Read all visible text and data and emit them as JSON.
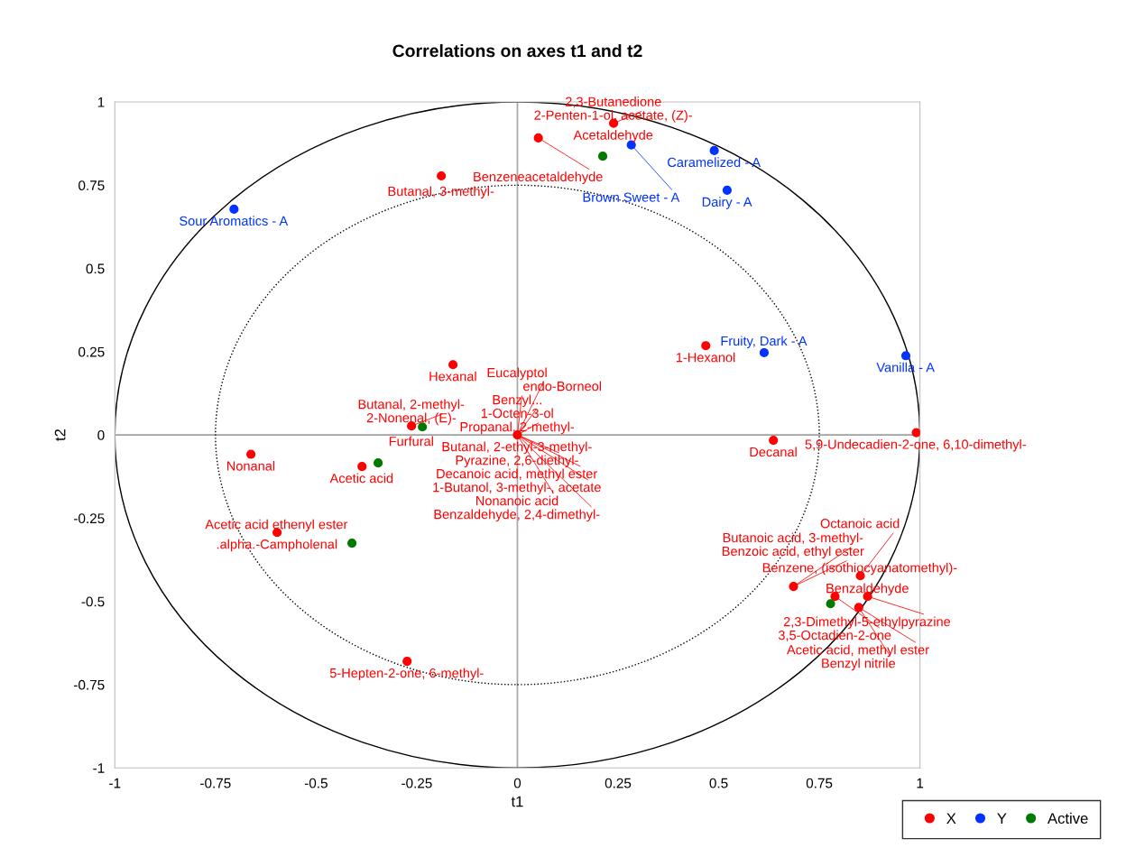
{
  "chart_data": {
    "type": "scatter",
    "title": "Correlations on axes t1 and t2",
    "xlabel": "t1",
    "ylabel": "t2",
    "xlim": [
      -1,
      1
    ],
    "ylim": [
      -1,
      1
    ],
    "xticks": [
      -1,
      -0.75,
      -0.5,
      -0.25,
      0,
      0.25,
      0.5,
      0.75,
      1
    ],
    "yticks": [
      -1,
      -0.75,
      -0.5,
      -0.25,
      0,
      0.25,
      0.5,
      0.75,
      1
    ],
    "grid": false,
    "legend": "bottom right",
    "marker": "circle",
    "ref_lines": [
      {
        "axis": "x",
        "value": 0,
        "color": "#a6a6a6"
      },
      {
        "axis": "y",
        "value": 0,
        "color": "#a0a0a0"
      }
    ],
    "series": [
      {
        "name": "X",
        "color": "#ff0000",
        "x": [
          0.239,
          0.052,
          -0.189,
          -0.16,
          0.468,
          -0.263,
          -0.662,
          -0.386,
          -0.597,
          -0.274,
          0,
          0.636,
          0.991,
          0.852,
          0.87,
          0.789,
          0.848,
          0.686
        ],
        "values": [
          0.936,
          0.892,
          0.778,
          0.211,
          0.268,
          0.027,
          -0.058,
          -0.095,
          -0.293,
          -0.68,
          0,
          -0.016,
          0.007,
          -0.423,
          -0.485,
          -0.485,
          -0.518,
          -0.455
        ]
      },
      {
        "name": "Y",
        "color": "#0033ff",
        "x": [
          -0.704,
          0.283,
          0.489,
          0.521,
          0.613,
          0.965
        ],
        "values": [
          0.678,
          0.871,
          0.854,
          0.735,
          0.247,
          0.238
        ]
      },
      {
        "name": "Active",
        "color": "#007a00",
        "x": [
          0.212,
          -0.236,
          -0.346,
          -0.411,
          0.778
        ],
        "values": [
          0.837,
          0.024,
          -0.084,
          -0.325,
          -0.507
        ]
      }
    ],
    "annotations": [
      {
        "text": "Acetaldehyde",
        "x": 0.239,
        "y": 0.936
      },
      {
        "text": "2-Penten-1-ol, acetate, (Z)-",
        "x": 0.239,
        "y": 0.936
      },
      {
        "text": "2,3-Butanedione",
        "x": 0.239,
        "y": 0.936
      },
      {
        "text": "Benzeneacetaldehyde",
        "x": 0.052,
        "y": 0.892
      },
      {
        "text": "Butanal, 3-methyl-",
        "x": -0.189,
        "y": 0.778
      },
      {
        "text": "Hexanal",
        "x": -0.16,
        "y": 0.211
      },
      {
        "text": "1-Hexanol",
        "x": 0.468,
        "y": 0.268
      },
      {
        "text": "2-Nonenal, (E)-",
        "x": -0.263,
        "y": 0.027
      },
      {
        "text": "Furfural",
        "x": -0.263,
        "y": 0.027
      },
      {
        "text": "Butanal, 2-methyl-",
        "x": -0.263,
        "y": 0.027
      },
      {
        "text": "Nonanal",
        "x": -0.662,
        "y": -0.058
      },
      {
        "text": "Acetic acid",
        "x": -0.386,
        "y": -0.095
      },
      {
        "text": ".alpha.-Campholenal",
        "x": -0.597,
        "y": -0.293
      },
      {
        "text": "Acetic acid ethenyl ester",
        "x": -0.597,
        "y": -0.293
      },
      {
        "text": "5-Hepten-2-one, 6-methyl-",
        "x": -0.274,
        "y": -0.68
      },
      {
        "text": "Butanal, 2-ethyl-3-methyl-",
        "x": 0,
        "y": 0
      },
      {
        "text": "Pyrazine, 2,6-diethyl-",
        "x": 0,
        "y": 0
      },
      {
        "text": "Propanal, 2-methyl-",
        "x": 0,
        "y": 0
      },
      {
        "text": "Decanoic acid, methyl ester",
        "x": 0,
        "y": 0
      },
      {
        "text": "1-Butanol, 3-methyl-, acetate",
        "x": 0,
        "y": 0
      },
      {
        "text": "1-Octen-3-ol",
        "x": 0,
        "y": 0
      },
      {
        "text": "Benzyl...",
        "x": 0,
        "y": 0
      },
      {
        "text": "Nonanoic acid",
        "x": 0,
        "y": 0
      },
      {
        "text": "endo-Borneol",
        "x": 0,
        "y": 0
      },
      {
        "text": "Eucalyptol",
        "x": 0,
        "y": 0
      },
      {
        "text": "Benzaldehyde, 2,4-dimethyl-",
        "x": 0,
        "y": 0
      },
      {
        "text": "Decanal",
        "x": 0.636,
        "y": -0.016
      },
      {
        "text": "5,9-Undecadien-2-one, 6,10-dimethyl-",
        "x": 0.991,
        "y": 0.007
      },
      {
        "text": "Benzene, (isothiocyanatomethyl)-",
        "x": 0.852,
        "y": -0.423
      },
      {
        "text": "2,3-Dimethyl-5-ethylpyrazine",
        "x": 0.87,
        "y": -0.485
      },
      {
        "text": "3,5-Octadien-2-one",
        "x": 0.789,
        "y": -0.485
      },
      {
        "text": "Acetic acid, methyl ester",
        "x": 0.848,
        "y": -0.518
      },
      {
        "text": "Benzoic acid, ethyl ester",
        "x": 0.686,
        "y": -0.455
      },
      {
        "text": "Benzaldehyde",
        "x": 0.87,
        "y": -0.485
      },
      {
        "text": "Butanoic acid, 3-methyl-",
        "x": 0.686,
        "y": -0.455
      },
      {
        "text": "Octanoic acid",
        "x": 0.852,
        "y": -0.423
      },
      {
        "text": "Benzyl nitrile",
        "x": 0.848,
        "y": -0.518
      },
      {
        "text": "Sour Aromatics - A",
        "x": -0.704,
        "y": 0.678
      },
      {
        "text": "Brown Sweet - A",
        "x": 0.283,
        "y": 0.871
      },
      {
        "text": "Caramelized - A",
        "x": 0.489,
        "y": 0.854
      },
      {
        "text": "Dairy - A",
        "x": 0.521,
        "y": 0.735
      },
      {
        "text": "Fruity, Dark - A",
        "x": 0.613,
        "y": 0.247
      },
      {
        "text": "Vanilla - A",
        "x": 0.965,
        "y": 0.238
      }
    ]
  }
}
